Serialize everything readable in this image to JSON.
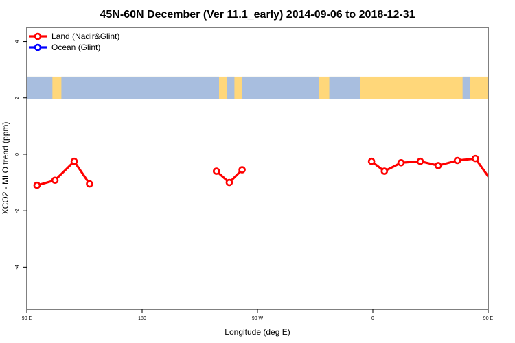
{
  "chart_data": {
    "type": "line",
    "title": "45N-60N December (Ver 11.1_early)   2014-09-06 to 2018-12-31",
    "xlabel": "Longitude (deg E)",
    "ylabel": "XCO2 - MLO trend (ppm)",
    "xlim": [
      90,
      450
    ],
    "ylim": [
      -5.5,
      4.5
    ],
    "x_ticks": [
      {
        "value": 90,
        "label": "90 E"
      },
      {
        "value": 180,
        "label": "180"
      },
      {
        "value": 270,
        "label": "90 W"
      },
      {
        "value": 360,
        "label": "0"
      },
      {
        "value": 450,
        "label": "90 E"
      },
      {
        "value": 540,
        "label": "180"
      }
    ],
    "y_ticks": [
      {
        "value": 4,
        "label": "4"
      },
      {
        "value": 2,
        "label": "2"
      },
      {
        "value": 0,
        "label": "0"
      },
      {
        "value": -2,
        "label": "-2"
      },
      {
        "value": -4,
        "label": "-4"
      }
    ],
    "map_band": {
      "y_range": [
        1.95,
        2.75
      ],
      "land_color": "#FFD77A",
      "ocean_color": "#A8BEDF"
    },
    "legend_position": "top-left",
    "series": [
      {
        "name": "Land (Nadir&Glint)",
        "color": "#FF0000",
        "segments": [
          [
            [
              98,
              -1.1
            ],
            [
              112,
              -0.92
            ],
            [
              127,
              -0.25
            ],
            [
              139,
              -1.05
            ]
          ],
          [
            [
              238,
              -0.6
            ],
            [
              248,
              -1.0
            ],
            [
              258,
              -0.55
            ]
          ],
          [
            [
              359,
              -0.25
            ],
            [
              369,
              -0.6
            ],
            [
              382,
              -0.3
            ],
            [
              397,
              -0.25
            ],
            [
              411,
              -0.4
            ],
            [
              426,
              -0.22
            ],
            [
              440,
              -0.15
            ],
            [
              455,
              -1.1
            ],
            [
              469,
              -0.92
            ],
            [
              484,
              -0.25
            ],
            [
              498,
              -1.05
            ]
          ]
        ]
      },
      {
        "name": "Ocean (Glint)",
        "color": "#0000FF",
        "segments": []
      }
    ]
  }
}
